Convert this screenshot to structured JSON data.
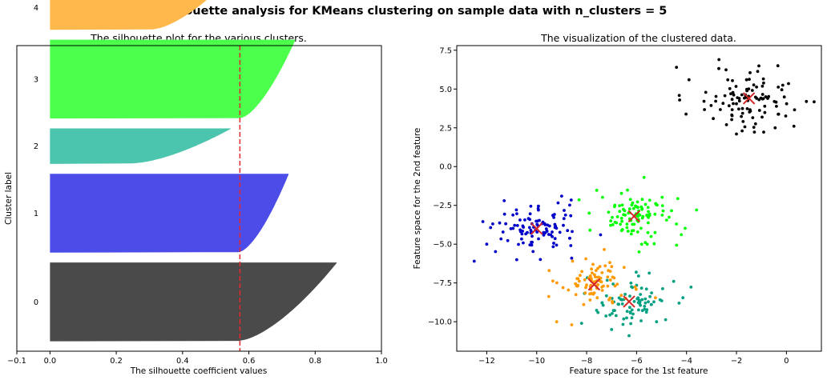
{
  "figure": {
    "suptitle": "Silhouette analysis for KMeans clustering on sample data with n_clusters = 5"
  },
  "chart_data": [
    {
      "type": "area",
      "title": "The silhouette plot for the various clusters.",
      "xlabel": "The silhouette coefficient values",
      "ylabel": "Cluster label",
      "xlim": [
        -0.1,
        1.0
      ],
      "xticks": [
        -0.1,
        0,
        0.2,
        0.4,
        0.6,
        0.8,
        1.0
      ],
      "xtick_labels": [
        "−0.1",
        "0.0",
        "0.2",
        "0.4",
        "0.6",
        "0.8",
        "1.0"
      ],
      "ylim": [
        0,
        310
      ],
      "average_silhouette_score": 0.573,
      "avg_line_color": "#e8262b",
      "clusters": [
        {
          "label": "0",
          "size": 80,
          "max": 0.865,
          "min": 0.57,
          "color": "#4a4a4a"
        },
        {
          "label": "1",
          "size": 80,
          "max": 0.72,
          "min": 0.57,
          "color": "#4c4de8"
        },
        {
          "label": "2",
          "size": 36,
          "max": 0.545,
          "min": 0.25,
          "color": "#4cc5ae"
        },
        {
          "label": "3",
          "size": 80,
          "max": 0.74,
          "min": 0.575,
          "color": "#4cff4c"
        },
        {
          "label": "4",
          "size": 45,
          "max": 0.52,
          "min": 0.31,
          "color": "#ffb84c"
        }
      ]
    },
    {
      "type": "scatter",
      "title": "The visualization of the clustered data.",
      "xlabel": "Feature space for the 1st feature",
      "ylabel": "Feature space for the 2nd feature",
      "xlim": [
        -13.2,
        1.4
      ],
      "ylim": [
        -11.9,
        7.8
      ],
      "xticks": [
        -12,
        -10,
        -8,
        -6,
        -4,
        -2,
        0
      ],
      "xtick_labels": [
        "−12",
        "−10",
        "−8",
        "−6",
        "−4",
        "−2",
        "0"
      ],
      "yticks": [
        -10.0,
        -7.5,
        -5.0,
        -2.5,
        0.0,
        2.5,
        5.0,
        7.5
      ],
      "ytick_labels": [
        "−10.0",
        "−7.5",
        "−5.0",
        "−2.5",
        "0.0",
        "2.5",
        "5.0",
        "7.5"
      ],
      "center_color": "#d62728",
      "clusters": [
        {
          "label": "0",
          "color": "#000000",
          "center": [
            -1.5,
            4.4
          ],
          "n": 100,
          "spread": [
            0.95,
            0.95
          ],
          "samples": [
            [
              -4.4,
              6.4
            ],
            [
              0.8,
              4.2
            ],
            [
              -2.7,
              6.9
            ],
            [
              -2.0,
              2.1
            ],
            [
              0.3,
              2.6
            ],
            [
              -3.9,
              5.6
            ],
            [
              -2.4,
              2.7
            ]
          ]
        },
        {
          "label": "1",
          "color": "#0000c8",
          "center": [
            -10.0,
            -4.0
          ],
          "n": 100,
          "spread": [
            0.9,
            0.75
          ],
          "samples": [
            [
              -12.5,
              -6.1
            ],
            [
              -12.0,
              -5.0
            ],
            [
              -9.0,
              -1.9
            ],
            [
              -11.3,
              -2.2
            ],
            [
              -8.6,
              -5.9
            ],
            [
              -10.8,
              -6.0
            ]
          ]
        },
        {
          "label": "2",
          "color": "#00a080",
          "center": [
            -6.3,
            -8.7
          ],
          "n": 80,
          "spread": [
            0.8,
            0.75
          ],
          "samples": [
            [
              -4.3,
              -8.8
            ],
            [
              -7.0,
              -10.5
            ],
            [
              -6.3,
              -10.9
            ],
            [
              -8.2,
              -10.1
            ],
            [
              -5.2,
              -10.0
            ]
          ]
        },
        {
          "label": "3",
          "color": "#00ff00",
          "center": [
            -6.1,
            -3.2
          ],
          "n": 100,
          "spread": [
            0.85,
            0.75
          ],
          "samples": [
            [
              -3.6,
              -2.8
            ],
            [
              -5.7,
              -0.7
            ],
            [
              -4.4,
              -3.7
            ],
            [
              -7.9,
              -3.0
            ],
            [
              -5.9,
              -5.5
            ]
          ]
        },
        {
          "label": "4",
          "color": "#ff9900",
          "center": [
            -7.7,
            -7.6
          ],
          "n": 80,
          "spread": [
            0.7,
            0.7
          ],
          "samples": [
            [
              -9.2,
              -10.0
            ],
            [
              -8.6,
              -10.2
            ],
            [
              -6.5,
              -6.5
            ],
            [
              -9.5,
              -6.7
            ]
          ]
        }
      ]
    }
  ]
}
